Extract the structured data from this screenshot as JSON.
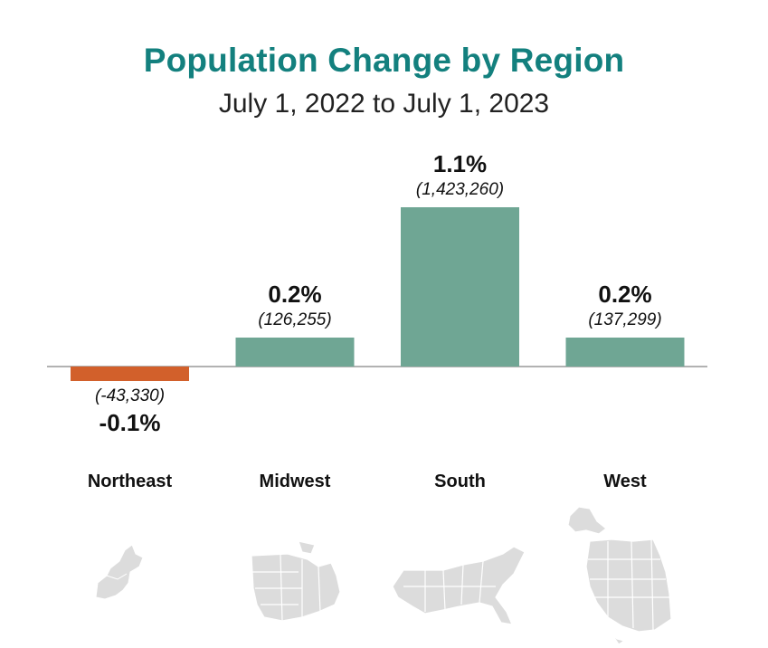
{
  "title": "Population Change by Region",
  "subtitle": "July 1, 2022 to July 1, 2023",
  "colors": {
    "title": "#13807e",
    "positive": "#6fa694",
    "negative": "#d2602b",
    "map": "#dcdcdc",
    "axis": "#999999"
  },
  "chart_data": {
    "type": "bar",
    "title": "Population Change by Region",
    "subtitle": "July 1, 2022 to July 1, 2023",
    "categories": [
      "Northeast",
      "Midwest",
      "South",
      "West"
    ],
    "values": [
      -0.1,
      0.2,
      1.1,
      0.2
    ],
    "value_labels": [
      "-0.1%",
      "0.2%",
      "1.1%",
      "0.2%"
    ],
    "counts": [
      -43330,
      126255,
      1423260,
      137299
    ],
    "count_labels": [
      "(-43,330)",
      "(126,255)",
      "(1,423,260)",
      "(137,299)"
    ],
    "unit": "%",
    "grid": false,
    "legend": "none"
  }
}
